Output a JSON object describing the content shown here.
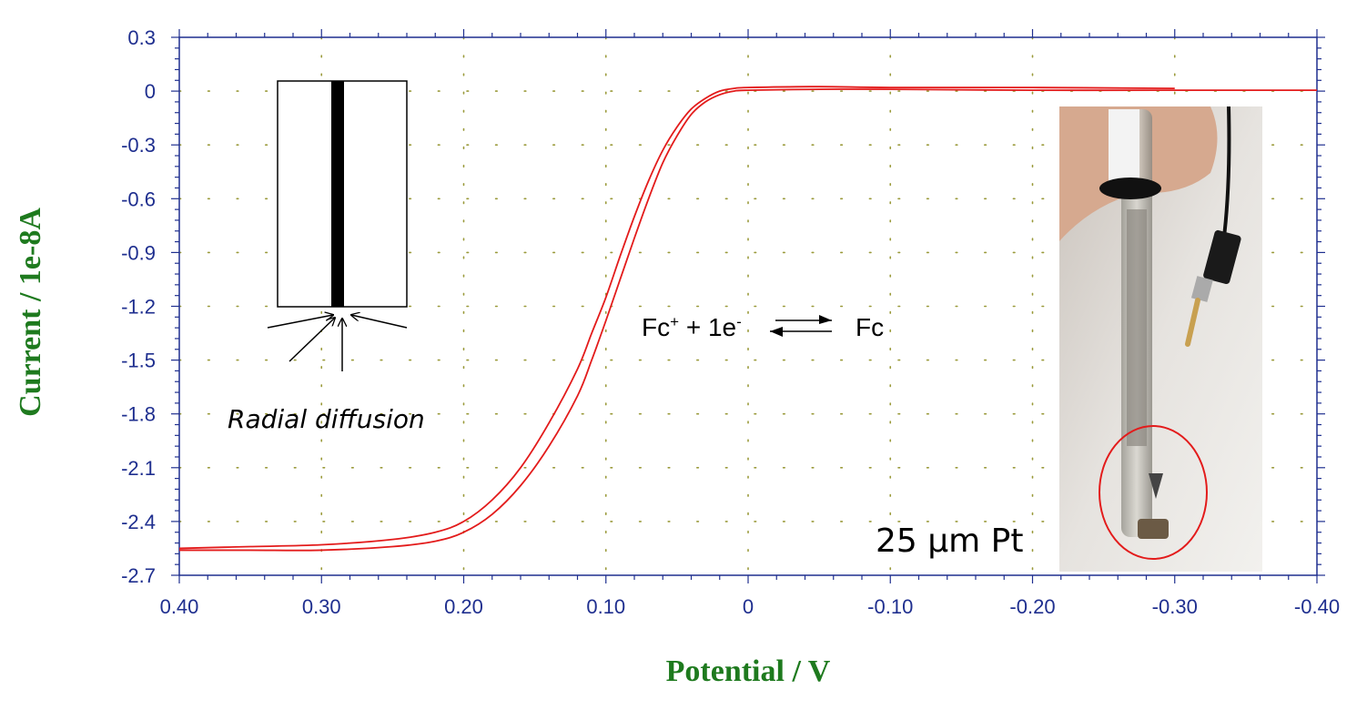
{
  "chart_data": {
    "type": "line",
    "xlabel": "Potential / V",
    "ylabel": "Current / 1e-8A",
    "xlim": [
      0.4,
      -0.4
    ],
    "ylim": [
      -2.7,
      0.3
    ],
    "x_ticks": [
      "0.40",
      "0.30",
      "0.20",
      "0.10",
      "0",
      "-0.10",
      "-0.20",
      "-0.30",
      "-0.40"
    ],
    "y_ticks": [
      "0.3",
      "0",
      "-0.3",
      "-0.6",
      "-0.9",
      "-1.2",
      "-1.5",
      "-1.8",
      "-2.1",
      "-2.4",
      "-2.7"
    ],
    "grid": true,
    "series": [
      {
        "color": "#e31b1b",
        "x": [
          0.4,
          0.35,
          0.3,
          0.25,
          0.22,
          0.2,
          0.18,
          0.16,
          0.14,
          0.12,
          0.11,
          0.1,
          0.09,
          0.08,
          0.07,
          0.06,
          0.05,
          0.04,
          0.03,
          0.02,
          0.01,
          0.0,
          -0.05,
          -0.1,
          -0.2,
          -0.3
        ],
        "y": [
          -2.55,
          -2.54,
          -2.53,
          -2.5,
          -2.46,
          -2.4,
          -2.28,
          -2.1,
          -1.85,
          -1.55,
          -1.35,
          -1.15,
          -0.92,
          -0.7,
          -0.5,
          -0.33,
          -0.2,
          -0.1,
          -0.04,
          0.0,
          0.015,
          0.02,
          0.025,
          0.02,
          0.02,
          0.015
        ]
      },
      {
        "color": "#e31b1b",
        "x": [
          0.4,
          0.35,
          0.3,
          0.25,
          0.22,
          0.2,
          0.18,
          0.16,
          0.14,
          0.12,
          0.11,
          0.1,
          0.09,
          0.08,
          0.07,
          0.06,
          0.05,
          0.04,
          0.03,
          0.02,
          0.01,
          0.0,
          -0.05,
          -0.1,
          -0.2,
          -0.3,
          -0.4
        ],
        "y": [
          -2.56,
          -2.56,
          -2.56,
          -2.54,
          -2.51,
          -2.46,
          -2.36,
          -2.2,
          -1.98,
          -1.7,
          -1.5,
          -1.28,
          -1.05,
          -0.82,
          -0.6,
          -0.4,
          -0.25,
          -0.13,
          -0.06,
          -0.02,
          0.0,
          0.005,
          0.01,
          0.01,
          0.005,
          0.005,
          0.005
        ]
      }
    ],
    "annotations": {
      "reaction_left": "Fc",
      "reaction_sup_plus": "+",
      "reaction_mid": " + 1e",
      "reaction_sup_minus": "-",
      "reaction_right": "Fc",
      "diffusion_label": "Radial diffusion",
      "photo_label": "25 µm Pt"
    }
  }
}
